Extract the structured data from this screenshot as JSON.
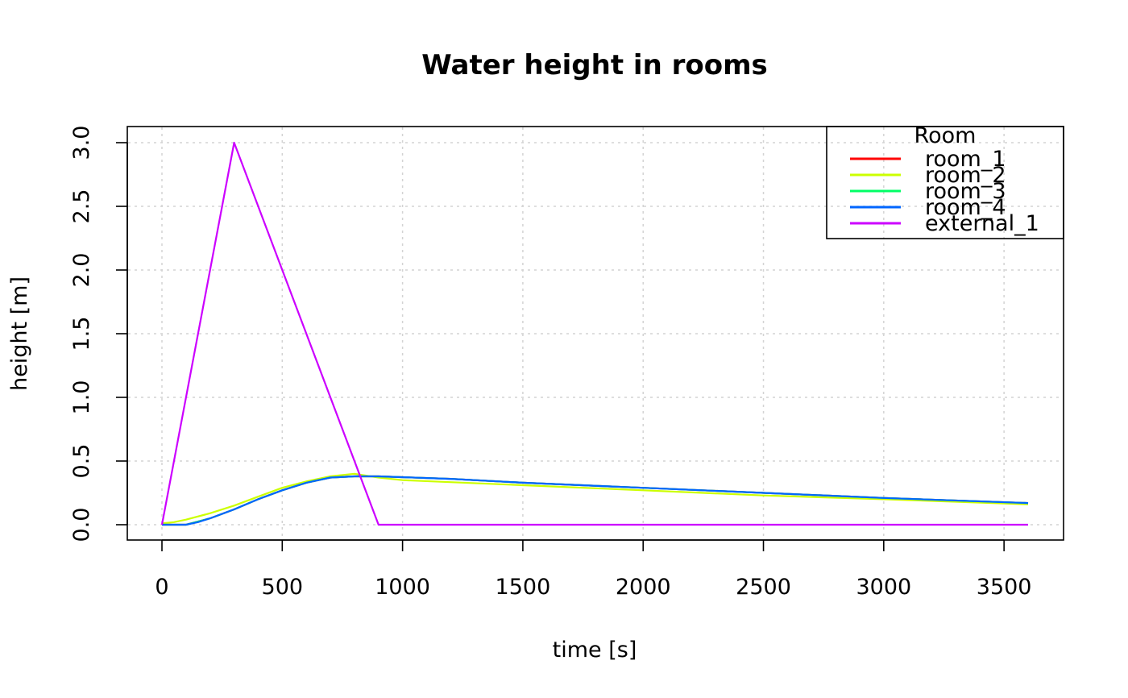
{
  "chart_data": {
    "type": "line",
    "title": "Water height in rooms",
    "xlabel": "time [s]",
    "ylabel": "height [m]",
    "xlim": [
      0,
      3600
    ],
    "ylim": [
      0,
      3.0
    ],
    "x_ticks": [
      "0",
      "500",
      "1000",
      "1500",
      "2000",
      "2500",
      "3000",
      "3500"
    ],
    "x_tick_values": [
      0,
      500,
      1000,
      1500,
      2000,
      2500,
      3000,
      3500
    ],
    "y_ticks": [
      "0.0",
      "0.5",
      "1.0",
      "1.5",
      "2.0",
      "2.5",
      "3.0"
    ],
    "y_tick_values": [
      0,
      0.5,
      1.0,
      1.5,
      2.0,
      2.5,
      3.0
    ],
    "grid": true,
    "legend": {
      "title": "Room",
      "position": "top-right"
    },
    "series": [
      {
        "name": "room_1",
        "color": "#ff0000",
        "dash": "solid",
        "x": [
          0,
          100,
          200,
          300,
          400,
          500,
          600,
          700,
          800,
          900,
          1200,
          1500,
          2000,
          2500,
          3000,
          3600
        ],
        "y": [
          0,
          0,
          0.05,
          0.12,
          0.2,
          0.27,
          0.33,
          0.37,
          0.38,
          0.38,
          0.36,
          0.33,
          0.29,
          0.25,
          0.21,
          0.17
        ]
      },
      {
        "name": "room_2",
        "color": "#ccff00",
        "dash": "solid",
        "x": [
          0,
          50,
          100,
          200,
          300,
          400,
          500,
          600,
          700,
          800,
          900,
          1000,
          1500,
          2000,
          2500,
          3000,
          3600
        ],
        "y": [
          0.01,
          0.02,
          0.04,
          0.09,
          0.15,
          0.22,
          0.29,
          0.34,
          0.38,
          0.4,
          0.37,
          0.35,
          0.31,
          0.27,
          0.23,
          0.2,
          0.16
        ]
      },
      {
        "name": "room_3",
        "color": "#00ff66",
        "dash": "solid",
        "x": [
          0,
          100,
          200,
          300,
          400,
          500,
          600,
          700,
          800,
          900,
          1200,
          1500,
          2000,
          2500,
          3000,
          3600
        ],
        "y": [
          0,
          0,
          0.05,
          0.12,
          0.2,
          0.27,
          0.33,
          0.37,
          0.38,
          0.38,
          0.36,
          0.33,
          0.29,
          0.25,
          0.21,
          0.17
        ]
      },
      {
        "name": "room_4",
        "color": "#0066ff",
        "dash": "solid",
        "x": [
          0,
          100,
          150,
          200,
          300,
          400,
          500,
          600,
          700,
          800,
          900,
          1200,
          1500,
          2000,
          2500,
          3000,
          3600
        ],
        "y": [
          0,
          0,
          0.02,
          0.05,
          0.12,
          0.2,
          0.27,
          0.33,
          0.37,
          0.38,
          0.38,
          0.36,
          0.33,
          0.29,
          0.25,
          0.21,
          0.17
        ]
      },
      {
        "name": "external_1",
        "color": "#cc00ff",
        "dash": "solid",
        "x": [
          0,
          300,
          900,
          3600
        ],
        "y": [
          0,
          3.0,
          0,
          0
        ]
      }
    ]
  }
}
